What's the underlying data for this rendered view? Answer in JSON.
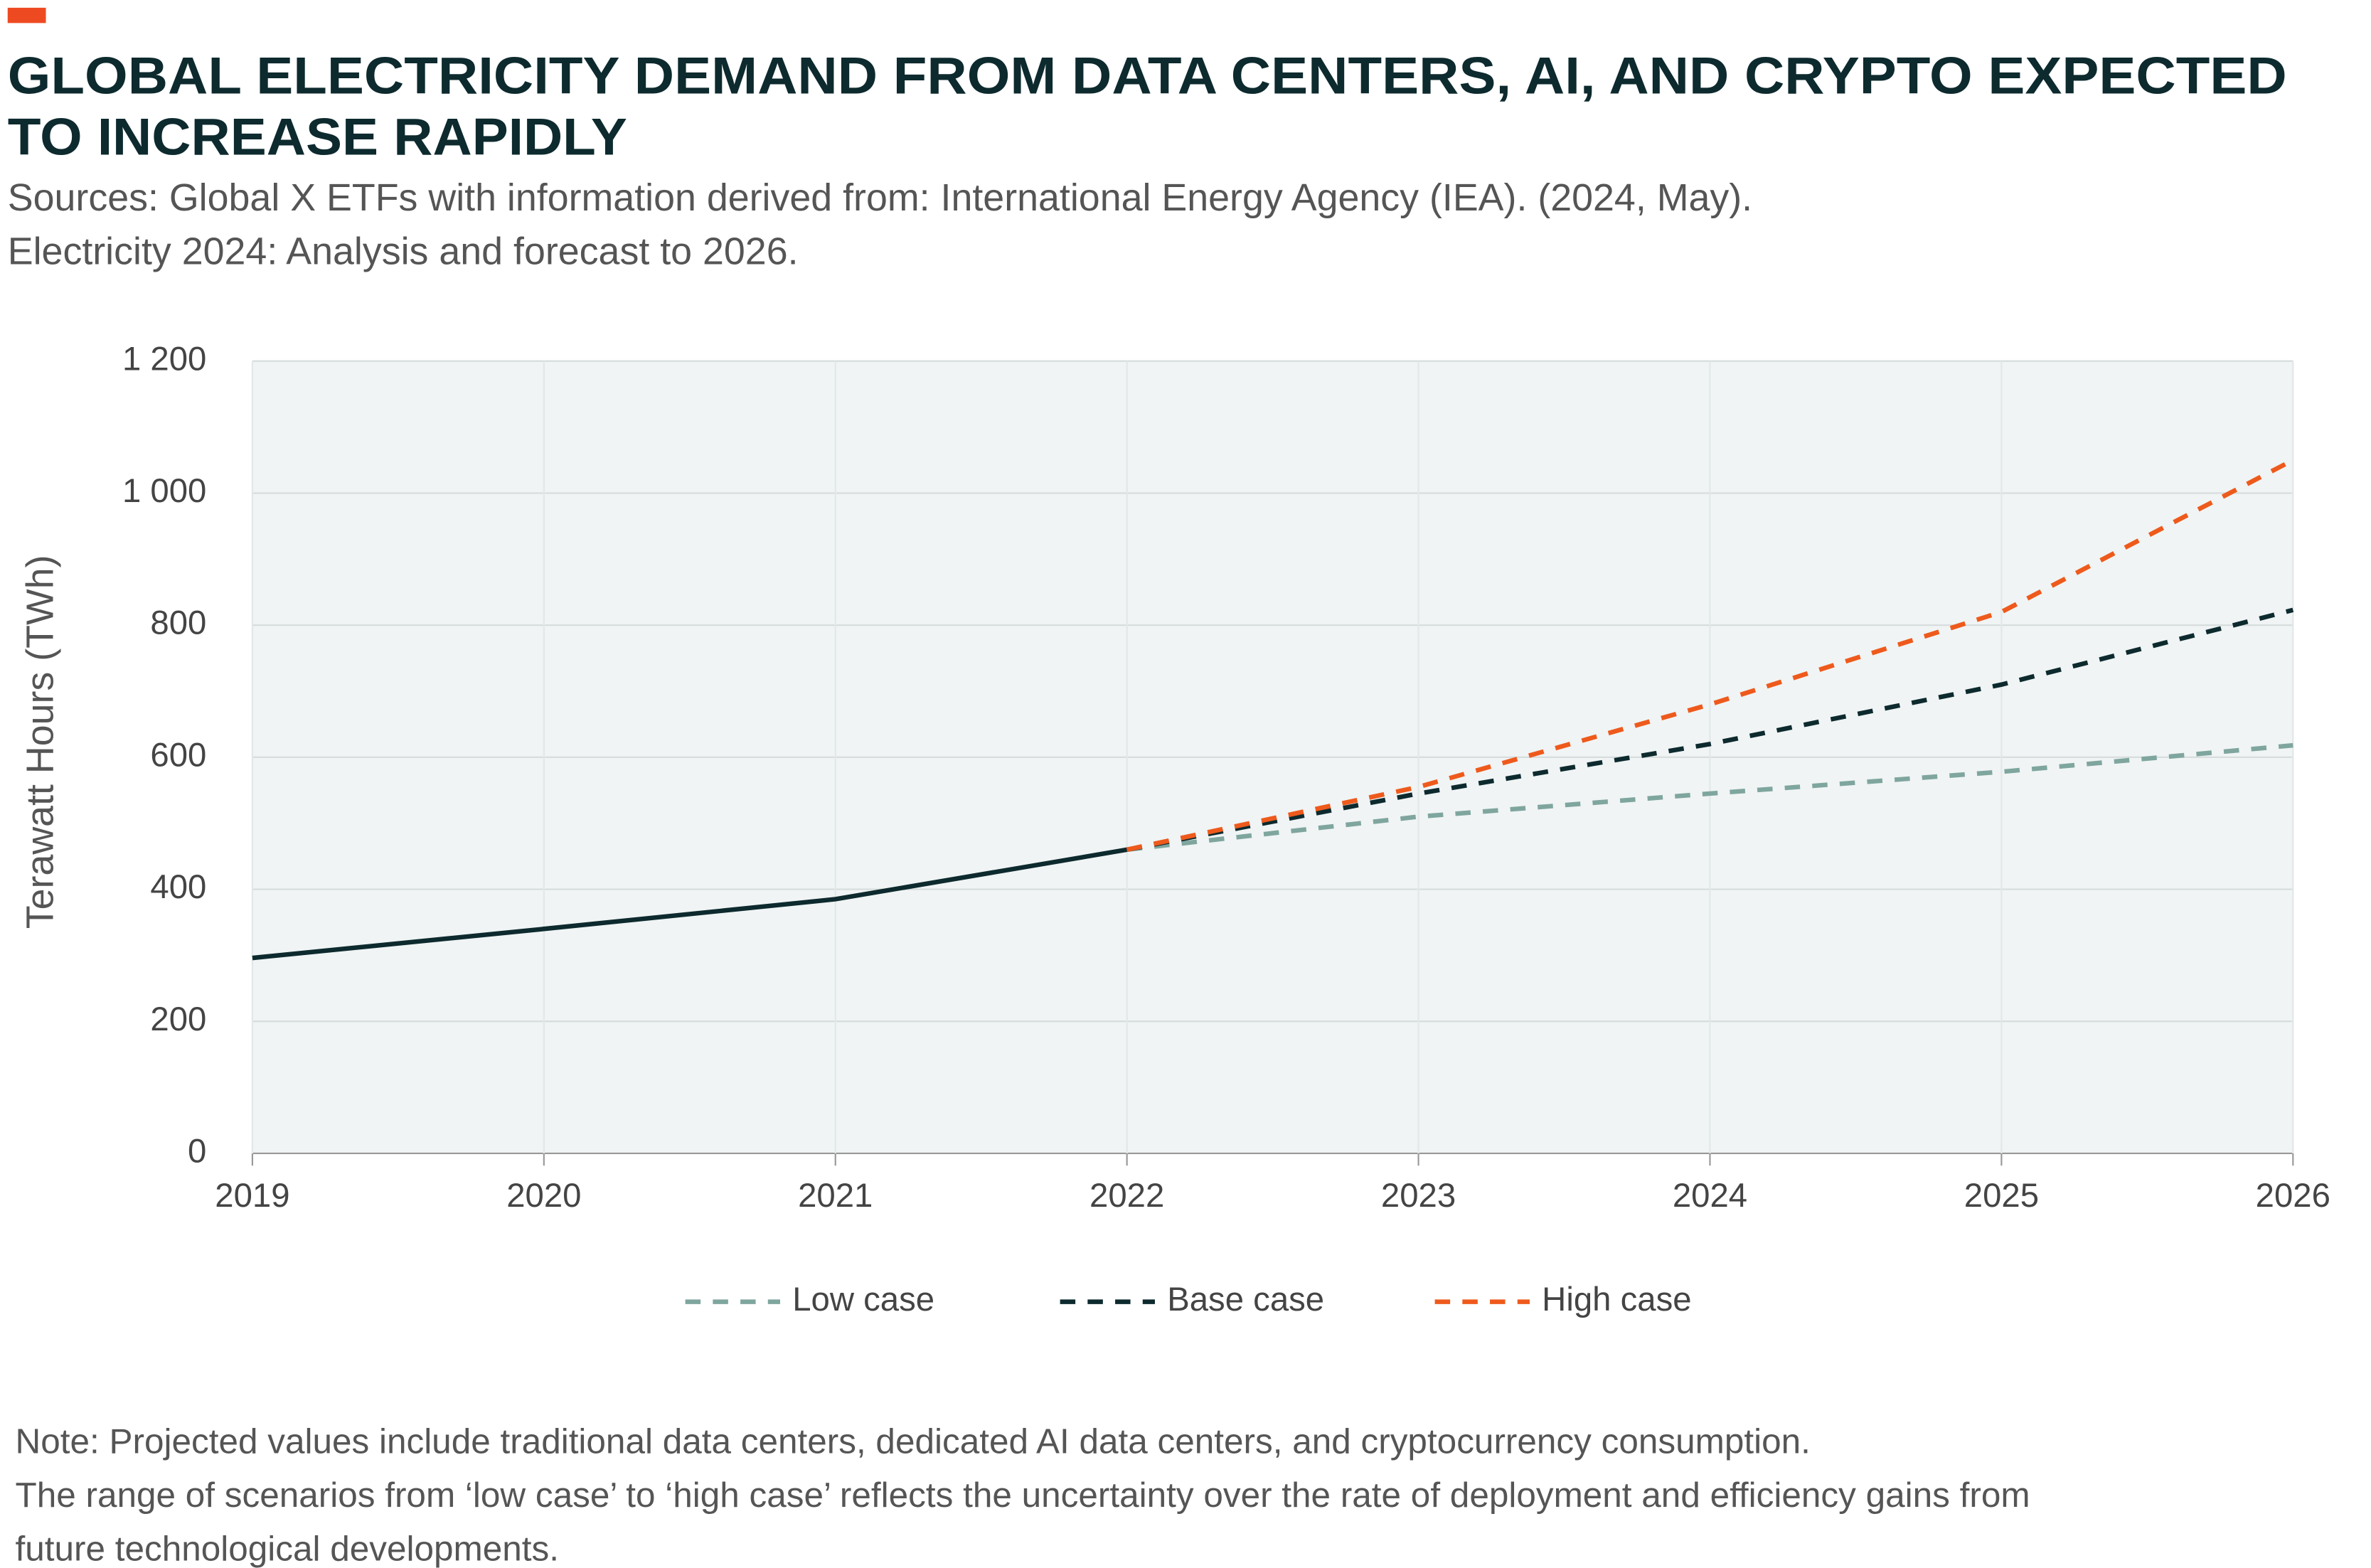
{
  "chart_data": {
    "type": "line",
    "title": [
      "GLOBAL ELECTRICITY DEMAND FROM DATA CENTERS, AI, AND CRYPTO EXPECTED",
      "TO INCREASE RAPIDLY"
    ],
    "subtitle": [
      "Sources: Global X ETFs with information derived from: International Energy Agency (IEA). (2024, May).",
      "Electricity 2024: Analysis and forecast to 2026."
    ],
    "y_label": "Terawatt Hours (TWh)",
    "x": [
      2019,
      2020,
      2021,
      2022,
      2023,
      2024,
      2025,
      2026
    ],
    "xlim": [
      2019,
      2026
    ],
    "xticks": [
      2019,
      2020,
      2021,
      2022,
      2023,
      2024,
      2025,
      2026
    ],
    "ylim": [
      0,
      1200
    ],
    "yticks": [
      0,
      200,
      400,
      600,
      800,
      {
        "value": 1000,
        "label": "1 000"
      },
      {
        "value": 1200,
        "label": "1 200"
      }
    ],
    "grid": true,
    "series": [
      {
        "color": "#0d2a2e",
        "dashed": false,
        "values": [
          296,
          340,
          385,
          460,
          null,
          null,
          null,
          null
        ]
      },
      {
        "name": "Low case",
        "color": "#7fa69e",
        "dashed": true,
        "values": [
          null,
          null,
          null,
          460,
          510,
          545,
          578,
          618
        ]
      },
      {
        "name": "Base case",
        "color": "#0d2a2e",
        "dashed": true,
        "values": [
          null,
          null,
          null,
          460,
          545,
          620,
          710,
          823
        ]
      },
      {
        "name": "High case",
        "color": "#ee5a1c",
        "dashed": true,
        "values": [
          null,
          null,
          null,
          460,
          555,
          680,
          820,
          1050
        ]
      }
    ],
    "legend": "bottom",
    "note": [
      "Note: Projected values include traditional data centers, dedicated AI data centers, and cryptocurrency consumption.",
      "The range of scenarios from ‘low case’ to ‘high case’ reflects the uncertainty over the rate of deployment and efficiency gains from",
      "future technological developments."
    ]
  }
}
